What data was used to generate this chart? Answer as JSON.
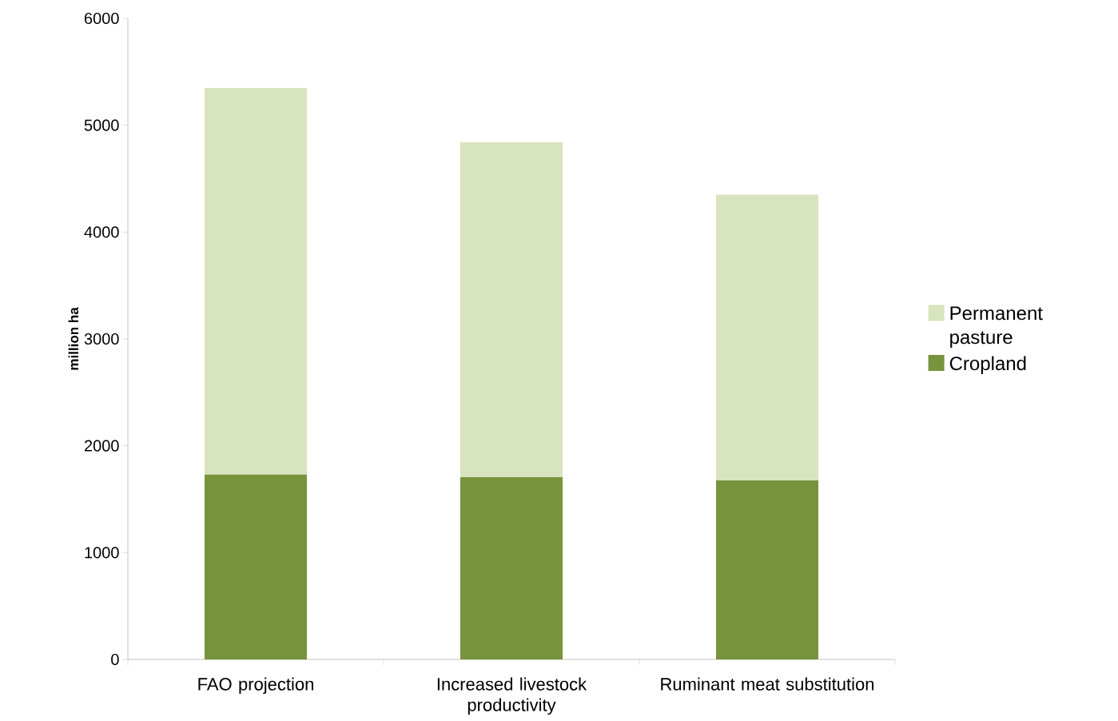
{
  "chart_data": {
    "type": "bar",
    "stacked": true,
    "ylabel": "million ha",
    "categories": [
      "FAO projection",
      "Increased livestock productivity",
      "Ruminant meat substitution"
    ],
    "series": [
      {
        "name": "Cropland",
        "color": "#77933c",
        "values": [
          1730,
          1705,
          1675
        ]
      },
      {
        "name": "Permanent pasture",
        "color": "#d7e4bd",
        "values": [
          3620,
          3135,
          2675
        ]
      }
    ],
    "ylim": [
      0,
      6000
    ],
    "yticks": [
      0,
      1000,
      2000,
      3000,
      4000,
      5000,
      6000
    ],
    "legend": "right"
  }
}
